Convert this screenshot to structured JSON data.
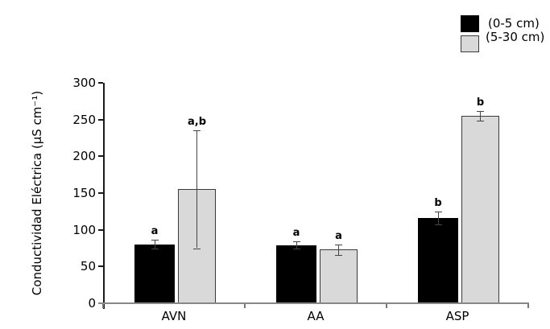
{
  "figure": {
    "background": "#ffffff"
  },
  "legend": {
    "position": "top-right",
    "items": [
      {
        "label": "(0-5 cm)",
        "color": "#000000",
        "border": "#000000"
      },
      {
        "label": "(5-30 cm)",
        "color": "#d9d9d9",
        "border": "#3a3a3a"
      }
    ]
  },
  "chart_data": {
    "type": "bar",
    "title": "",
    "xlabel": "",
    "ylabel": "Conductividad Eléctrica (µS cm⁻¹)",
    "ylim": [
      0,
      300
    ],
    "yticks": [
      0,
      50,
      100,
      150,
      200,
      250,
      300
    ],
    "categories": [
      "AVN",
      "AA",
      "ASP"
    ],
    "series": [
      {
        "name": "(0-5 cm)",
        "color": "#000000",
        "border": "#000000",
        "values": [
          80,
          79,
          116
        ],
        "errors": [
          6,
          5,
          9
        ],
        "sig_letters": [
          "a",
          "a",
          "b"
        ]
      },
      {
        "name": "(5-30 cm)",
        "color": "#d9d9d9",
        "border": "#3a3a3a",
        "values": [
          155,
          73,
          255
        ],
        "errors": [
          80,
          7,
          7
        ],
        "sig_letters": [
          "a,b",
          "a",
          "b"
        ]
      }
    ],
    "grid": false,
    "legend_position": "top-right",
    "error_bar_color": "#444444",
    "axis_colors": {
      "y_axis": "#1a1a1a",
      "x_axis": "#888888"
    }
  }
}
